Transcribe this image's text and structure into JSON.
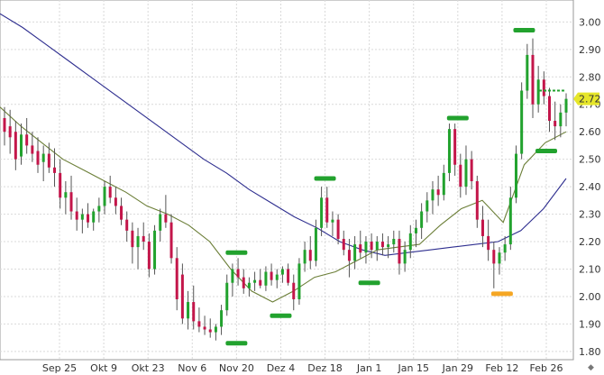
{
  "chart_data": {
    "type": "candlestick",
    "title": "",
    "xlabel": "",
    "ylabel": "",
    "ylim": [
      1.77,
      3.08
    ],
    "y_ticks": [
      "1.80",
      "1.90",
      "2.00",
      "2.10",
      "2.20",
      "2.30",
      "2.40",
      "2.50",
      "2.60",
      "2.70",
      "2.80",
      "2.90",
      "3.00"
    ],
    "x_ticks": [
      "Sep 25",
      "Okt 9",
      "Okt 23",
      "Nov 6",
      "Nov 20",
      "Dez 4",
      "Dez 18",
      "Jan 1",
      "Jan 15",
      "Jan 29",
      "Feb 12",
      "Feb 26"
    ],
    "last_price": "2.72",
    "colors": {
      "up": "#22a22e",
      "down": "#c3164a",
      "ma_long": "#2e2e8f",
      "ma_short": "#6b7e37",
      "marker_high": "#22a22e",
      "marker_low": "#22a22e",
      "marker_special": "#f5a623",
      "last_price_badge": "#e6e62a"
    },
    "moving_average_long": [
      3.03,
      2.98,
      2.92,
      2.86,
      2.8,
      2.74,
      2.68,
      2.62,
      2.56,
      2.5,
      2.45,
      2.39,
      2.34,
      2.29,
      2.25,
      2.2,
      2.17,
      2.15,
      2.16,
      2.17,
      2.18,
      2.19,
      2.2,
      2.24,
      2.32,
      2.43
    ],
    "moving_average_short": [
      2.69,
      2.62,
      2.56,
      2.5,
      2.46,
      2.42,
      2.38,
      2.33,
      2.3,
      2.26,
      2.2,
      2.1,
      2.02,
      1.98,
      2.02,
      2.07,
      2.09,
      2.13,
      2.17,
      2.18,
      2.19,
      2.26,
      2.32,
      2.35,
      2.27,
      2.48,
      2.56,
      2.6
    ],
    "markers": [
      {
        "type": "low",
        "x_label": "Nov 20",
        "y": 1.83
      },
      {
        "type": "high",
        "x_label": "Nov 20",
        "y": 2.16
      },
      {
        "type": "low",
        "x_label": "Dez 4",
        "y": 1.93
      },
      {
        "type": "high",
        "x_label": "Dez 18",
        "y": 2.43
      },
      {
        "type": "low",
        "x_label": "Jan 1",
        "y": 2.05
      },
      {
        "type": "high",
        "x_label": "Jan 29",
        "y": 2.65
      },
      {
        "type": "special_low",
        "x_label": "Feb 12",
        "y": 2.01
      },
      {
        "type": "high",
        "x_label": "Feb 19",
        "y": 2.97
      },
      {
        "type": "low",
        "x_label": "Feb 26",
        "y": 2.53
      },
      {
        "type": "resistance",
        "x_label": "Feb 26",
        "y": 2.75
      }
    ],
    "candles": [
      {
        "o": 2.65,
        "h": 2.69,
        "l": 2.55,
        "c": 2.6
      },
      {
        "o": 2.62,
        "h": 2.68,
        "l": 2.52,
        "c": 2.58
      },
      {
        "o": 2.6,
        "h": 2.64,
        "l": 2.46,
        "c": 2.5
      },
      {
        "o": 2.51,
        "h": 2.63,
        "l": 2.48,
        "c": 2.59
      },
      {
        "o": 2.59,
        "h": 2.65,
        "l": 2.52,
        "c": 2.55
      },
      {
        "o": 2.55,
        "h": 2.6,
        "l": 2.49,
        "c": 2.52
      },
      {
        "o": 2.53,
        "h": 2.58,
        "l": 2.45,
        "c": 2.48
      },
      {
        "o": 2.49,
        "h": 2.55,
        "l": 2.42,
        "c": 2.52
      },
      {
        "o": 2.52,
        "h": 2.56,
        "l": 2.45,
        "c": 2.47
      },
      {
        "o": 2.47,
        "h": 2.54,
        "l": 2.4,
        "c": 2.45
      },
      {
        "o": 2.45,
        "h": 2.5,
        "l": 2.32,
        "c": 2.36
      },
      {
        "o": 2.36,
        "h": 2.42,
        "l": 2.3,
        "c": 2.38
      },
      {
        "o": 2.38,
        "h": 2.44,
        "l": 2.28,
        "c": 2.31
      },
      {
        "o": 2.31,
        "h": 2.36,
        "l": 2.24,
        "c": 2.28
      },
      {
        "o": 2.28,
        "h": 2.32,
        "l": 2.23,
        "c": 2.3
      },
      {
        "o": 2.3,
        "h": 2.34,
        "l": 2.25,
        "c": 2.27
      },
      {
        "o": 2.27,
        "h": 2.32,
        "l": 2.24,
        "c": 2.31
      },
      {
        "o": 2.31,
        "h": 2.36,
        "l": 2.27,
        "c": 2.33
      },
      {
        "o": 2.33,
        "h": 2.42,
        "l": 2.3,
        "c": 2.4
      },
      {
        "o": 2.4,
        "h": 2.44,
        "l": 2.34,
        "c": 2.36
      },
      {
        "o": 2.36,
        "h": 2.4,
        "l": 2.3,
        "c": 2.33
      },
      {
        "o": 2.33,
        "h": 2.36,
        "l": 2.26,
        "c": 2.28
      },
      {
        "o": 2.28,
        "h": 2.31,
        "l": 2.2,
        "c": 2.24
      },
      {
        "o": 2.24,
        "h": 2.27,
        "l": 2.12,
        "c": 2.18
      },
      {
        "o": 2.18,
        "h": 2.25,
        "l": 2.1,
        "c": 2.22
      },
      {
        "o": 2.22,
        "h": 2.27,
        "l": 2.17,
        "c": 2.2
      },
      {
        "o": 2.2,
        "h": 2.23,
        "l": 2.07,
        "c": 2.1
      },
      {
        "o": 2.1,
        "h": 2.26,
        "l": 2.08,
        "c": 2.24
      },
      {
        "o": 2.24,
        "h": 2.32,
        "l": 2.2,
        "c": 2.3
      },
      {
        "o": 2.3,
        "h": 2.37,
        "l": 2.25,
        "c": 2.27
      },
      {
        "o": 2.27,
        "h": 2.3,
        "l": 2.12,
        "c": 2.14
      },
      {
        "o": 2.14,
        "h": 2.18,
        "l": 1.95,
        "c": 1.99
      },
      {
        "o": 2.08,
        "h": 2.12,
        "l": 1.9,
        "c": 1.92
      },
      {
        "o": 1.92,
        "h": 2.02,
        "l": 1.88,
        "c": 1.98
      },
      {
        "o": 1.98,
        "h": 2.04,
        "l": 1.88,
        "c": 1.91
      },
      {
        "o": 1.91,
        "h": 1.96,
        "l": 1.87,
        "c": 1.89
      },
      {
        "o": 1.89,
        "h": 1.93,
        "l": 1.86,
        "c": 1.88
      },
      {
        "o": 1.88,
        "h": 1.92,
        "l": 1.85,
        "c": 1.87
      },
      {
        "o": 1.87,
        "h": 1.9,
        "l": 1.84,
        "c": 1.89
      },
      {
        "o": 1.89,
        "h": 1.97,
        "l": 1.86,
        "c": 1.95
      },
      {
        "o": 1.95,
        "h": 2.08,
        "l": 1.93,
        "c": 2.05
      },
      {
        "o": 2.05,
        "h": 2.12,
        "l": 2.0,
        "c": 2.1
      },
      {
        "o": 2.1,
        "h": 2.14,
        "l": 2.04,
        "c": 2.07
      },
      {
        "o": 2.07,
        "h": 2.1,
        "l": 2.01,
        "c": 2.03
      },
      {
        "o": 2.03,
        "h": 2.07,
        "l": 2.0,
        "c": 2.05
      },
      {
        "o": 2.05,
        "h": 2.09,
        "l": 2.02,
        "c": 2.06
      },
      {
        "o": 2.06,
        "h": 2.1,
        "l": 2.03,
        "c": 2.04
      },
      {
        "o": 2.04,
        "h": 2.11,
        "l": 2.02,
        "c": 2.09
      },
      {
        "o": 2.09,
        "h": 2.12,
        "l": 2.04,
        "c": 2.06
      },
      {
        "o": 2.06,
        "h": 2.1,
        "l": 2.03,
        "c": 2.08
      },
      {
        "o": 2.08,
        "h": 2.11,
        "l": 2.05,
        "c": 2.1
      },
      {
        "o": 2.1,
        "h": 2.12,
        "l": 2.04,
        "c": 2.05
      },
      {
        "o": 2.05,
        "h": 2.08,
        "l": 1.95,
        "c": 1.99
      },
      {
        "o": 1.99,
        "h": 2.14,
        "l": 1.97,
        "c": 2.12
      },
      {
        "o": 2.12,
        "h": 2.2,
        "l": 2.09,
        "c": 2.17
      },
      {
        "o": 2.17,
        "h": 2.22,
        "l": 2.1,
        "c": 2.13
      },
      {
        "o": 2.13,
        "h": 2.28,
        "l": 2.11,
        "c": 2.25
      },
      {
        "o": 2.25,
        "h": 2.4,
        "l": 2.22,
        "c": 2.36
      },
      {
        "o": 2.36,
        "h": 2.4,
        "l": 2.25,
        "c": 2.27
      },
      {
        "o": 2.27,
        "h": 2.31,
        "l": 2.22,
        "c": 2.28
      },
      {
        "o": 2.28,
        "h": 2.3,
        "l": 2.19,
        "c": 2.21
      },
      {
        "o": 2.21,
        "h": 2.24,
        "l": 2.15,
        "c": 2.17
      },
      {
        "o": 2.17,
        "h": 2.21,
        "l": 2.07,
        "c": 2.13
      },
      {
        "o": 2.13,
        "h": 2.22,
        "l": 2.1,
        "c": 2.19
      },
      {
        "o": 2.19,
        "h": 2.24,
        "l": 2.14,
        "c": 2.16
      },
      {
        "o": 2.16,
        "h": 2.22,
        "l": 2.12,
        "c": 2.2
      },
      {
        "o": 2.2,
        "h": 2.23,
        "l": 2.14,
        "c": 2.17
      },
      {
        "o": 2.17,
        "h": 2.22,
        "l": 2.13,
        "c": 2.2
      },
      {
        "o": 2.2,
        "h": 2.23,
        "l": 2.15,
        "c": 2.18
      },
      {
        "o": 2.18,
        "h": 2.22,
        "l": 2.14,
        "c": 2.19
      },
      {
        "o": 2.19,
        "h": 2.24,
        "l": 2.16,
        "c": 2.21
      },
      {
        "o": 2.21,
        "h": 2.24,
        "l": 2.08,
        "c": 2.12
      },
      {
        "o": 2.12,
        "h": 2.2,
        "l": 2.09,
        "c": 2.17
      },
      {
        "o": 2.17,
        "h": 2.26,
        "l": 2.14,
        "c": 2.23
      },
      {
        "o": 2.23,
        "h": 2.28,
        "l": 2.18,
        "c": 2.25
      },
      {
        "o": 2.25,
        "h": 2.34,
        "l": 2.21,
        "c": 2.31
      },
      {
        "o": 2.31,
        "h": 2.38,
        "l": 2.27,
        "c": 2.35
      },
      {
        "o": 2.35,
        "h": 2.42,
        "l": 2.3,
        "c": 2.39
      },
      {
        "o": 2.39,
        "h": 2.44,
        "l": 2.33,
        "c": 2.37
      },
      {
        "o": 2.37,
        "h": 2.48,
        "l": 2.35,
        "c": 2.45
      },
      {
        "o": 2.45,
        "h": 2.63,
        "l": 2.42,
        "c": 2.61
      },
      {
        "o": 2.61,
        "h": 2.63,
        "l": 2.44,
        "c": 2.48
      },
      {
        "o": 2.48,
        "h": 2.52,
        "l": 2.36,
        "c": 2.4
      },
      {
        "o": 2.4,
        "h": 2.55,
        "l": 2.37,
        "c": 2.5
      },
      {
        "o": 2.5,
        "h": 2.53,
        "l": 2.39,
        "c": 2.42
      },
      {
        "o": 2.42,
        "h": 2.44,
        "l": 2.25,
        "c": 2.28
      },
      {
        "o": 2.28,
        "h": 2.33,
        "l": 2.18,
        "c": 2.22
      },
      {
        "o": 2.22,
        "h": 2.28,
        "l": 2.13,
        "c": 2.17
      },
      {
        "o": 2.17,
        "h": 2.2,
        "l": 2.03,
        "c": 2.12
      },
      {
        "o": 2.12,
        "h": 2.18,
        "l": 2.08,
        "c": 2.16
      },
      {
        "o": 2.16,
        "h": 2.22,
        "l": 2.13,
        "c": 2.19
      },
      {
        "o": 2.19,
        "h": 2.4,
        "l": 2.17,
        "c": 2.36
      },
      {
        "o": 2.36,
        "h": 2.55,
        "l": 2.34,
        "c": 2.52
      },
      {
        "o": 2.52,
        "h": 2.78,
        "l": 2.5,
        "c": 2.75
      },
      {
        "o": 2.75,
        "h": 2.92,
        "l": 2.72,
        "c": 2.88
      },
      {
        "o": 2.88,
        "h": 2.94,
        "l": 2.65,
        "c": 2.7
      },
      {
        "o": 2.7,
        "h": 2.84,
        "l": 2.67,
        "c": 2.79
      },
      {
        "o": 2.79,
        "h": 2.82,
        "l": 2.7,
        "c": 2.73
      },
      {
        "o": 2.73,
        "h": 2.76,
        "l": 2.6,
        "c": 2.64
      },
      {
        "o": 2.64,
        "h": 2.71,
        "l": 2.57,
        "c": 2.62
      },
      {
        "o": 2.62,
        "h": 2.7,
        "l": 2.58,
        "c": 2.67
      },
      {
        "o": 2.67,
        "h": 2.74,
        "l": 2.62,
        "c": 2.72
      }
    ]
  }
}
